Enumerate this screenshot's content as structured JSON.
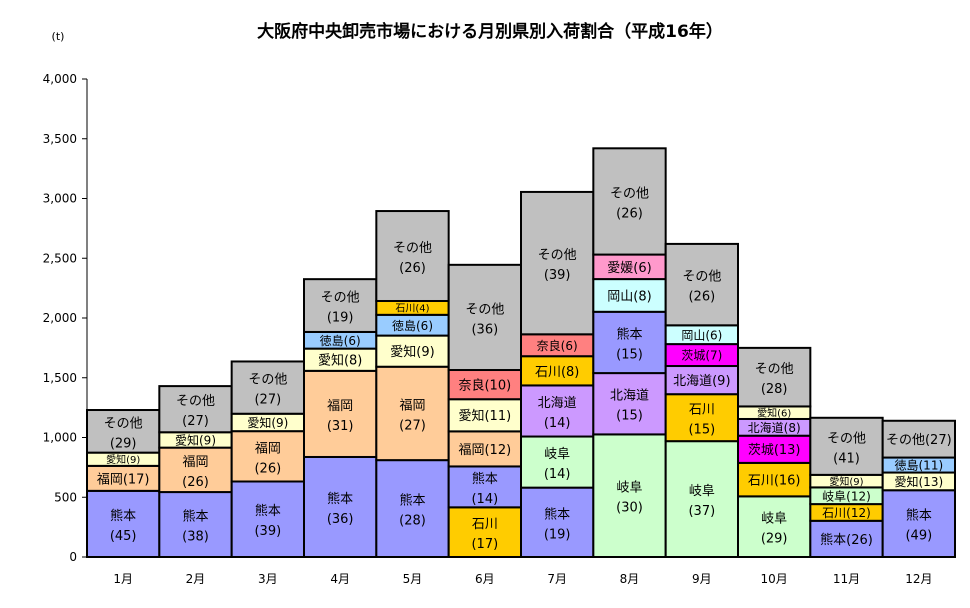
{
  "chart_data": {
    "type": "bar",
    "stacked": true,
    "title": "大阪府中央卸売市場における月別県別入荷割合（平成16年）",
    "ylabel": "(t)",
    "xlabel": "",
    "ylim": [
      0,
      4000
    ],
    "yticks": [
      "0",
      "500",
      "1,000",
      "1,500",
      "2,000",
      "2,500",
      "3,000",
      "3,500",
      "4,000"
    ],
    "ytick_values": [
      0,
      500,
      1000,
      1500,
      2000,
      2500,
      3000,
      3500,
      4000
    ],
    "grid": false,
    "legend": "none",
    "colors": {
      "熊本": "#9999ff",
      "福岡": "#ffcc99",
      "愛知": "#ffffcc",
      "その他": "#c0c0c0",
      "徳島": "#99ccff",
      "石川": "#ffcc00",
      "奈良": "#ff8080",
      "岐阜": "#ccffcc",
      "北海道": "#cc99ff",
      "岡山": "#ccffff",
      "愛媛": "#ff99cc",
      "茨城": "#ff00ff"
    },
    "categories": [
      "1月",
      "2月",
      "3月",
      "4月",
      "5月",
      "6月",
      "7月",
      "8月",
      "9月",
      "10月",
      "11月",
      "12月"
    ],
    "totals": [
      1230,
      1430,
      1620,
      2325,
      2895,
      2445,
      3055,
      3420,
      2620,
      1750,
      1165,
      1140
    ],
    "stacks": [
      [
        {
          "name": "熊本",
          "pct": 45
        },
        {
          "name": "福岡",
          "pct": 17
        },
        {
          "name": "愛知",
          "pct": 9
        },
        {
          "name": "その他",
          "pct": 29
        }
      ],
      [
        {
          "name": "熊本",
          "pct": 38
        },
        {
          "name": "福岡",
          "pct": 26
        },
        {
          "name": "愛知",
          "pct": 9
        },
        {
          "name": "その他",
          "pct": 27
        }
      ],
      [
        {
          "name": "熊本",
          "pct": 39
        },
        {
          "name": "福岡",
          "pct": 26
        },
        {
          "name": "愛知",
          "pct": 9
        },
        {
          "name": "その他",
          "pct": 27
        }
      ],
      [
        {
          "name": "熊本",
          "pct": 36
        },
        {
          "name": "福岡",
          "pct": 31
        },
        {
          "name": "愛知",
          "pct": 8
        },
        {
          "name": "徳島",
          "pct": 6
        },
        {
          "name": "その他",
          "pct": 19
        }
      ],
      [
        {
          "name": "熊本",
          "pct": 28
        },
        {
          "name": "福岡",
          "pct": 27
        },
        {
          "name": "愛知",
          "pct": 9
        },
        {
          "name": "徳島",
          "pct": 6
        },
        {
          "name": "石川",
          "pct": 4
        },
        {
          "name": "その他",
          "pct": 26
        }
      ],
      [
        {
          "name": "石川",
          "pct": 17
        },
        {
          "name": "熊本",
          "pct": 14
        },
        {
          "name": "福岡",
          "pct": 12
        },
        {
          "name": "愛知",
          "pct": 11
        },
        {
          "name": "奈良",
          "pct": 10
        },
        {
          "name": "その他",
          "pct": 36
        }
      ],
      [
        {
          "name": "熊本",
          "pct": 19
        },
        {
          "name": "岐阜",
          "pct": 14
        },
        {
          "name": "北海道",
          "pct": 14
        },
        {
          "name": "石川",
          "pct": 8
        },
        {
          "name": "奈良",
          "pct": 6
        },
        {
          "name": "その他",
          "pct": 39
        }
      ],
      [
        {
          "name": "岐阜",
          "pct": 30
        },
        {
          "name": "北海道",
          "pct": 15
        },
        {
          "name": "熊本",
          "pct": 15
        },
        {
          "name": "岡山",
          "pct": 8
        },
        {
          "name": "愛媛",
          "pct": 6
        },
        {
          "name": "その他",
          "pct": 26
        }
      ],
      [
        {
          "name": "岐阜",
          "pct": 37
        },
        {
          "name": "石川",
          "pct": 15
        },
        {
          "name": "北海道",
          "pct": 9
        },
        {
          "name": "茨城",
          "pct": 7
        },
        {
          "name": "岡山",
          "pct": 6
        },
        {
          "name": "その他",
          "pct": 26
        }
      ],
      [
        {
          "name": "岐阜",
          "pct": 29
        },
        {
          "name": "石川",
          "pct": 16
        },
        {
          "name": "茨城",
          "pct": 13
        },
        {
          "name": "北海道",
          "pct": 8
        },
        {
          "name": "愛知",
          "pct": 6
        },
        {
          "name": "その他",
          "pct": 28
        }
      ],
      [
        {
          "name": "熊本",
          "pct": 26
        },
        {
          "name": "石川",
          "pct": 12
        },
        {
          "name": "岐阜",
          "pct": 12
        },
        {
          "name": "愛知",
          "pct": 9
        },
        {
          "name": "その他",
          "pct": 41
        }
      ],
      [
        {
          "name": "熊本",
          "pct": 49
        },
        {
          "name": "愛知",
          "pct": 13
        },
        {
          "name": "徳島",
          "pct": 11
        },
        {
          "name": "その他",
          "pct": 27
        }
      ]
    ]
  }
}
